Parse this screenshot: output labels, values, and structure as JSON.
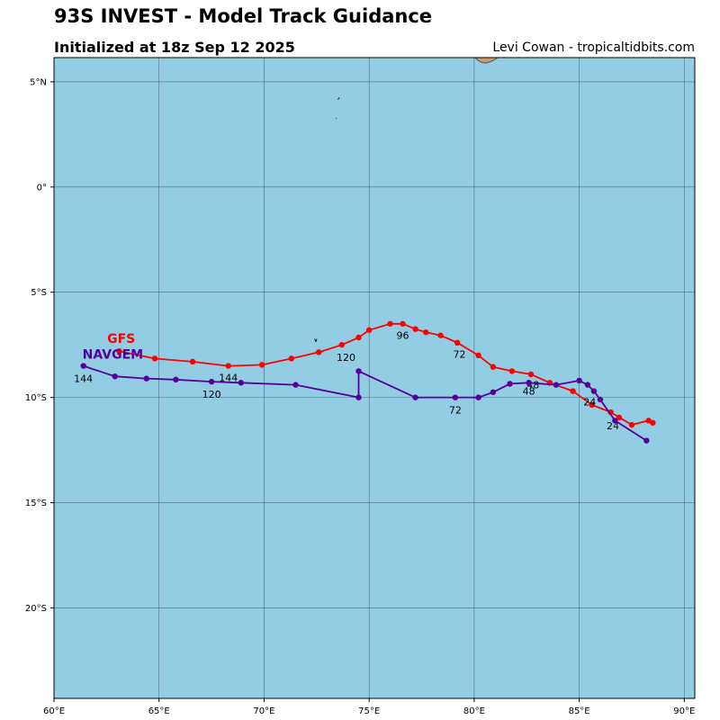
{
  "header": {
    "title": "93S INVEST - Model Track Guidance",
    "subtitle": "Initialized at 18z Sep 12 2025",
    "credit": "Levi Cowan - tropicaltidbits.com"
  },
  "colors": {
    "ocean": "#93cde3",
    "land": "#c8a070",
    "grid": "#4a6f7c",
    "gfs": "#ff0000",
    "navgem": "#55009b"
  },
  "map": {
    "lon_range": [
      60,
      90.5
    ],
    "lat_range": [
      -24.3,
      6.15
    ],
    "lon_ticks": [
      {
        "value": 60,
        "label": "60°E"
      },
      {
        "value": 65,
        "label": "65°E"
      },
      {
        "value": 70,
        "label": "70°E"
      },
      {
        "value": 75,
        "label": "75°E"
      },
      {
        "value": 80,
        "label": "80°E"
      },
      {
        "value": 85,
        "label": "85°E"
      },
      {
        "value": 90,
        "label": "90°E"
      }
    ],
    "lat_ticks": [
      {
        "value": 5,
        "label": "5°N"
      },
      {
        "value": 0,
        "label": "0°"
      },
      {
        "value": -5,
        "label": "5°S"
      },
      {
        "value": -10,
        "label": "10°S"
      },
      {
        "value": -15,
        "label": "15°S"
      },
      {
        "value": -20,
        "label": "20°S"
      }
    ]
  },
  "chart_data": {
    "type": "line",
    "series": [
      {
        "name": "GFS",
        "color": "#ff0000",
        "label_at": {
          "lon": 63.2,
          "lat": -7.2
        },
        "points": [
          {
            "lon": 88.5,
            "lat": -11.2
          },
          {
            "lon": 88.3,
            "lat": -11.1
          },
          {
            "lon": 87.5,
            "lat": -11.3
          },
          {
            "lon": 86.9,
            "lat": -10.95
          },
          {
            "lon": 86.5,
            "lat": -10.7
          },
          {
            "lon": 85.6,
            "lat": -10.35
          },
          {
            "lon": 84.7,
            "lat": -9.7
          },
          {
            "lon": 83.6,
            "lat": -9.3
          },
          {
            "lon": 82.7,
            "lat": -8.9
          },
          {
            "lon": 81.8,
            "lat": -8.75
          },
          {
            "lon": 80.9,
            "lat": -8.55
          },
          {
            "lon": 80.2,
            "lat": -8.0
          },
          {
            "lon": 79.2,
            "lat": -7.4
          },
          {
            "lon": 78.4,
            "lat": -7.05
          },
          {
            "lon": 77.7,
            "lat": -6.9
          },
          {
            "lon": 77.2,
            "lat": -6.75
          },
          {
            "lon": 76.6,
            "lat": -6.5
          },
          {
            "lon": 76.0,
            "lat": -6.5
          },
          {
            "lon": 75.0,
            "lat": -6.8
          },
          {
            "lon": 74.5,
            "lat": -7.15
          },
          {
            "lon": 73.7,
            "lat": -7.5
          },
          {
            "lon": 72.6,
            "lat": -7.85
          },
          {
            "lon": 71.3,
            "lat": -8.15
          },
          {
            "lon": 69.9,
            "lat": -8.45
          },
          {
            "lon": 68.3,
            "lat": -8.5
          },
          {
            "lon": 66.6,
            "lat": -8.3
          },
          {
            "lon": 64.8,
            "lat": -8.15
          },
          {
            "lon": 63.1,
            "lat": -7.8
          }
        ],
        "hour_labels": [
          {
            "text": "24",
            "lon": 86.6,
            "lat": -11.35
          },
          {
            "text": "48",
            "lon": 82.8,
            "lat": -9.4
          },
          {
            "text": "72",
            "lon": 79.3,
            "lat": -7.95
          },
          {
            "text": "96",
            "lon": 76.6,
            "lat": -7.05
          },
          {
            "text": "120",
            "lon": 73.9,
            "lat": -8.1
          },
          {
            "text": "144",
            "lon": 68.3,
            "lat": -9.05
          }
        ]
      },
      {
        "name": "NAVGEM",
        "color": "#55009b",
        "label_at": {
          "lon": 62.8,
          "lat": -7.95
        },
        "points": [
          {
            "lon": 88.2,
            "lat": -12.05
          },
          {
            "lon": 86.7,
            "lat": -11.1
          },
          {
            "lon": 86.0,
            "lat": -10.1
          },
          {
            "lon": 85.7,
            "lat": -9.7
          },
          {
            "lon": 85.4,
            "lat": -9.4
          },
          {
            "lon": 85.0,
            "lat": -9.2
          },
          {
            "lon": 83.9,
            "lat": -9.4
          },
          {
            "lon": 82.6,
            "lat": -9.3
          },
          {
            "lon": 81.7,
            "lat": -9.35
          },
          {
            "lon": 80.9,
            "lat": -9.75
          },
          {
            "lon": 80.2,
            "lat": -10.0
          },
          {
            "lon": 79.1,
            "lat": -10.0
          },
          {
            "lon": 77.2,
            "lat": -10.0
          },
          {
            "lon": 74.5,
            "lat": -8.75
          },
          {
            "lon": 74.5,
            "lat": -10.0
          },
          {
            "lon": 71.5,
            "lat": -9.4
          },
          {
            "lon": 68.9,
            "lat": -9.3
          },
          {
            "lon": 67.5,
            "lat": -9.25
          },
          {
            "lon": 65.8,
            "lat": -9.15
          },
          {
            "lon": 64.4,
            "lat": -9.1
          },
          {
            "lon": 62.9,
            "lat": -9.0
          },
          {
            "lon": 61.4,
            "lat": -8.5
          }
        ],
        "hour_labels": [
          {
            "text": "24",
            "lon": 85.5,
            "lat": -10.2
          },
          {
            "text": "48",
            "lon": 82.6,
            "lat": -9.7
          },
          {
            "text": "72",
            "lon": 79.1,
            "lat": -10.6
          },
          {
            "text": "120",
            "lon": 67.5,
            "lat": -9.85
          },
          {
            "text": "144",
            "lon": 61.4,
            "lat": -9.1
          }
        ]
      }
    ]
  }
}
